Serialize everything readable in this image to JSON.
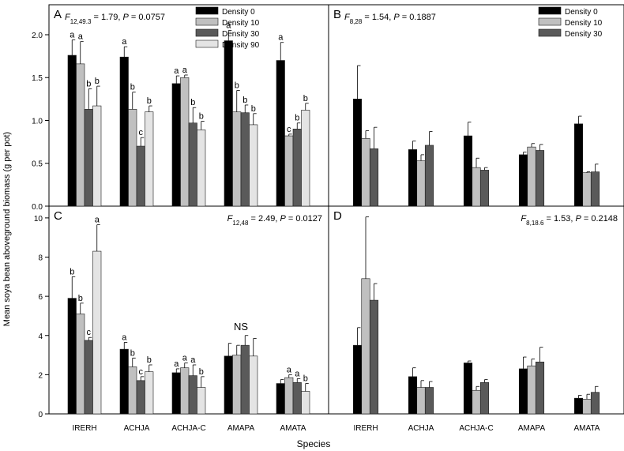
{
  "figure": {
    "ylabel": "Mean soya bean aboveground biomass (g per pot)",
    "xlabel": "Species"
  },
  "chart_data": [
    {
      "panel": "A",
      "type": "bar",
      "categories": [
        "IRERH",
        "ACHJA",
        "ACHJA-C",
        "AMAPA",
        "AMATA"
      ],
      "ylim": [
        0,
        2.35
      ],
      "yticks": [
        0.0,
        0.5,
        1.0,
        1.5,
        2.0
      ],
      "ytick_labels": [
        "0.0",
        "0.5",
        "1.0",
        "1.5",
        "2.0"
      ],
      "show_xticklabels": false,
      "stat": {
        "F": "F",
        "sub": "12,49.3",
        "rest": " = 1.79, ",
        "P": "P",
        "pval": " = 0.0757",
        "pos": "top-left"
      },
      "legend": {
        "pos": "top-center"
      },
      "series": [
        {
          "name": "Density 0",
          "color": "#000000",
          "values": [
            1.76,
            1.74,
            1.43,
            1.93,
            1.7
          ],
          "err": [
            0.18,
            0.12,
            0.09,
            0.12,
            0.21
          ],
          "letters": [
            "a",
            "a",
            "a",
            "a",
            "a"
          ]
        },
        {
          "name": "Density 10",
          "color": "#c0c0c0",
          "values": [
            1.66,
            1.13,
            1.5,
            1.1,
            0.82
          ],
          "err": [
            0.26,
            0.2,
            0.03,
            0.25,
            0.02
          ],
          "letters": [
            "a",
            "b",
            "a",
            "b",
            "c"
          ]
        },
        {
          "name": "Density 30",
          "color": "#5a5a5a",
          "values": [
            1.13,
            0.7,
            0.97,
            1.09,
            0.9
          ],
          "err": [
            0.24,
            0.1,
            0.18,
            0.09,
            0.07
          ],
          "letters": [
            "b",
            "c",
            "b",
            "b",
            "b"
          ]
        },
        {
          "name": "Density 90",
          "color": "#e4e4e4",
          "values": [
            1.17,
            1.1,
            0.89,
            0.95,
            1.12
          ],
          "err": [
            0.23,
            0.07,
            0.1,
            0.13,
            0.08
          ],
          "letters": [
            "b",
            "b",
            "b",
            "b",
            "b"
          ]
        }
      ]
    },
    {
      "panel": "B",
      "type": "bar",
      "categories": [
        "IRERH",
        "ACHJA",
        "ACHJA-C",
        "AMAPA",
        "AMATA"
      ],
      "ylim": [
        0,
        2.35
      ],
      "yticks": [],
      "ytick_labels": [],
      "show_xticklabels": false,
      "stat": {
        "F": "F",
        "sub": "8,28",
        "rest": " = 1.54, ",
        "P": "P",
        "pval": " = 0.1887",
        "pos": "top-left"
      },
      "legend": {
        "pos": "top-right"
      },
      "series": [
        {
          "name": "Density 0",
          "color": "#000000",
          "values": [
            1.25,
            0.66,
            0.82,
            0.6,
            0.96
          ],
          "err": [
            0.39,
            0.1,
            0.16,
            0.03,
            0.09
          ],
          "letters": []
        },
        {
          "name": "Density 10",
          "color": "#c0c0c0",
          "values": [
            0.79,
            0.53,
            0.45,
            0.69,
            0.39
          ],
          "err": [
            0.09,
            0.07,
            0.11,
            0.04,
            0.01
          ],
          "letters": []
        },
        {
          "name": "Density 30",
          "color": "#5a5a5a",
          "values": [
            0.67,
            0.71,
            0.42,
            0.65,
            0.4
          ],
          "err": [
            0.25,
            0.16,
            0.03,
            0.07,
            0.09
          ],
          "letters": []
        }
      ]
    },
    {
      "panel": "C",
      "type": "bar",
      "categories": [
        "IRERH",
        "ACHJA",
        "ACHJA-C",
        "AMAPA",
        "AMATA"
      ],
      "ylim": [
        0,
        10.6
      ],
      "yticks": [
        0,
        2,
        4,
        6,
        8,
        10
      ],
      "ytick_labels": [
        "0",
        "2",
        "4",
        "6",
        "8",
        "10"
      ],
      "show_xticklabels": true,
      "stat": {
        "F": "F",
        "sub": "12,48",
        "rest": " = 2.49, ",
        "P": "P",
        "pval": " = 0.0127",
        "pos": "top-right"
      },
      "annotation": {
        "text": "NS",
        "category": "AMAPA"
      },
      "series": [
        {
          "name": "Density 0",
          "color": "#000000",
          "values": [
            5.9,
            3.3,
            2.1,
            2.95,
            1.55
          ],
          "err": [
            1.1,
            0.35,
            0.2,
            0.65,
            0.2
          ],
          "letters": [
            "b",
            "a",
            "a",
            "",
            ""
          ]
        },
        {
          "name": "Density 10",
          "color": "#c0c0c0",
          "values": [
            5.1,
            2.4,
            2.35,
            3.0,
            1.85
          ],
          "err": [
            0.55,
            0.45,
            0.25,
            0.5,
            0.15
          ],
          "letters": [
            "b",
            "b",
            "a",
            "",
            "a"
          ]
        },
        {
          "name": "Density 30",
          "color": "#5a5a5a",
          "values": [
            3.75,
            1.7,
            1.95,
            3.5,
            1.6
          ],
          "err": [
            0.15,
            0.2,
            0.55,
            0.5,
            0.2
          ],
          "letters": [
            "c",
            "c",
            "a",
            "",
            "a"
          ]
        },
        {
          "name": "Density 90",
          "color": "#e4e4e4",
          "values": [
            8.3,
            2.15,
            1.35,
            2.95,
            1.15
          ],
          "err": [
            1.35,
            0.35,
            0.55,
            0.9,
            0.4
          ],
          "letters": [
            "a",
            "b",
            "b",
            "",
            "b"
          ]
        }
      ]
    },
    {
      "panel": "D",
      "type": "bar",
      "categories": [
        "IRERH",
        "ACHJA",
        "ACHJA-C",
        "AMAPA",
        "AMATA"
      ],
      "ylim": [
        0,
        10.6
      ],
      "yticks": [],
      "ytick_labels": [],
      "show_xticklabels": true,
      "stat": {
        "F": "F",
        "sub": "8,18.6",
        "rest": " = 1.53, ",
        "P": "P",
        "pval": " = 0.2148",
        "pos": "top-right"
      },
      "series": [
        {
          "name": "Density 0",
          "color": "#000000",
          "values": [
            3.5,
            1.9,
            2.6,
            2.3,
            0.8
          ],
          "err": [
            0.9,
            0.45,
            0.1,
            0.6,
            0.15
          ],
          "letters": []
        },
        {
          "name": "Density 10",
          "color": "#c0c0c0",
          "values": [
            6.9,
            1.35,
            1.2,
            2.45,
            0.75
          ],
          "err": [
            3.15,
            0.35,
            0.2,
            0.35,
            0.25
          ],
          "letters": []
        },
        {
          "name": "Density 30",
          "color": "#5a5a5a",
          "values": [
            5.8,
            1.35,
            1.6,
            2.65,
            1.1
          ],
          "err": [
            0.85,
            0.3,
            0.15,
            0.75,
            0.3
          ],
          "letters": []
        }
      ]
    }
  ]
}
